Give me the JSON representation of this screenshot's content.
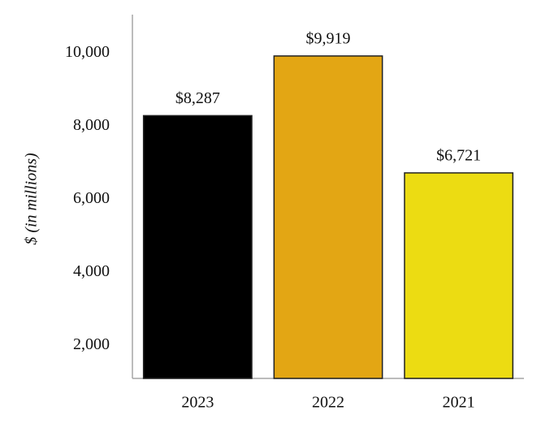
{
  "chart_data": {
    "type": "bar",
    "y_label": "$ (in millions)",
    "categories": [
      "2023",
      "2022",
      "2021"
    ],
    "values": [
      8287,
      9919,
      6721
    ],
    "value_labels": [
      "$8,287",
      "$9,919",
      "$6,721"
    ],
    "colors": [
      "#000000",
      "#e3a614",
      "#ecdc12"
    ],
    "ylim": [
      1100,
      11050
    ],
    "yticks": [
      {
        "value": 2000,
        "label": "2,000"
      },
      {
        "value": 4000,
        "label": "4,000"
      },
      {
        "value": 6000,
        "label": "6,000"
      },
      {
        "value": 8000,
        "label": "8,000"
      },
      {
        "value": 10000,
        "label": "10,000"
      }
    ],
    "grid": false
  }
}
